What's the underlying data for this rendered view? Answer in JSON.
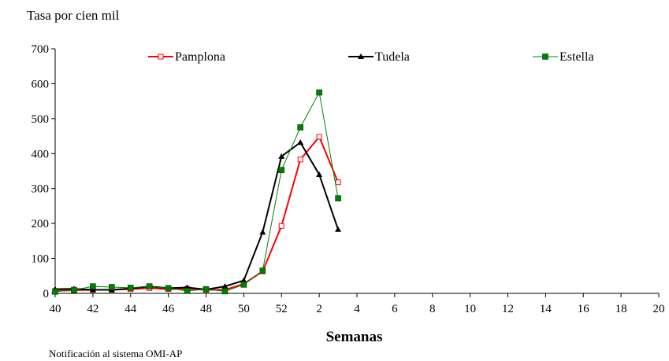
{
  "chart_data": {
    "type": "line",
    "title": "",
    "ylabel": "Tasa por cien mil",
    "xlabel": "Semanas",
    "source_note": "Notificación al sistema OMI-AP",
    "ylim": [
      0,
      700
    ],
    "yticks": [
      0,
      100,
      200,
      300,
      400,
      500,
      600,
      700
    ],
    "weeks": [
      40,
      41,
      42,
      43,
      44,
      45,
      46,
      47,
      48,
      49,
      50,
      51,
      52,
      1,
      2,
      3,
      4,
      5,
      6,
      7,
      8,
      9,
      10,
      11,
      12,
      13,
      14,
      15,
      16,
      17,
      18,
      19,
      20
    ],
    "x_tick_labels": [
      "40",
      "42",
      "44",
      "46",
      "48",
      "50",
      "52",
      "2",
      "4",
      "6",
      "8",
      "10",
      "12",
      "14",
      "16",
      "18",
      "20"
    ],
    "grid": false,
    "legend_position": "top",
    "series": [
      {
        "name": "Pamplona",
        "color": "#ff0000",
        "marker": "square-open",
        "values": [
          7,
          9,
          10,
          10,
          12,
          15,
          12,
          13,
          10,
          10,
          27,
          63,
          193,
          383,
          448,
          318
        ]
      },
      {
        "name": "Tudela",
        "color": "#000000",
        "marker": "triangle",
        "values": [
          12,
          13,
          10,
          10,
          14,
          20,
          15,
          17,
          11,
          20,
          37,
          175,
          392,
          432,
          340,
          183
        ]
      },
      {
        "name": "Estella",
        "color": "#008000",
        "marker": "square-filled",
        "values": [
          5,
          10,
          20,
          18,
          16,
          20,
          15,
          7,
          12,
          6,
          25,
          65,
          353,
          475,
          575,
          272
        ]
      }
    ]
  }
}
